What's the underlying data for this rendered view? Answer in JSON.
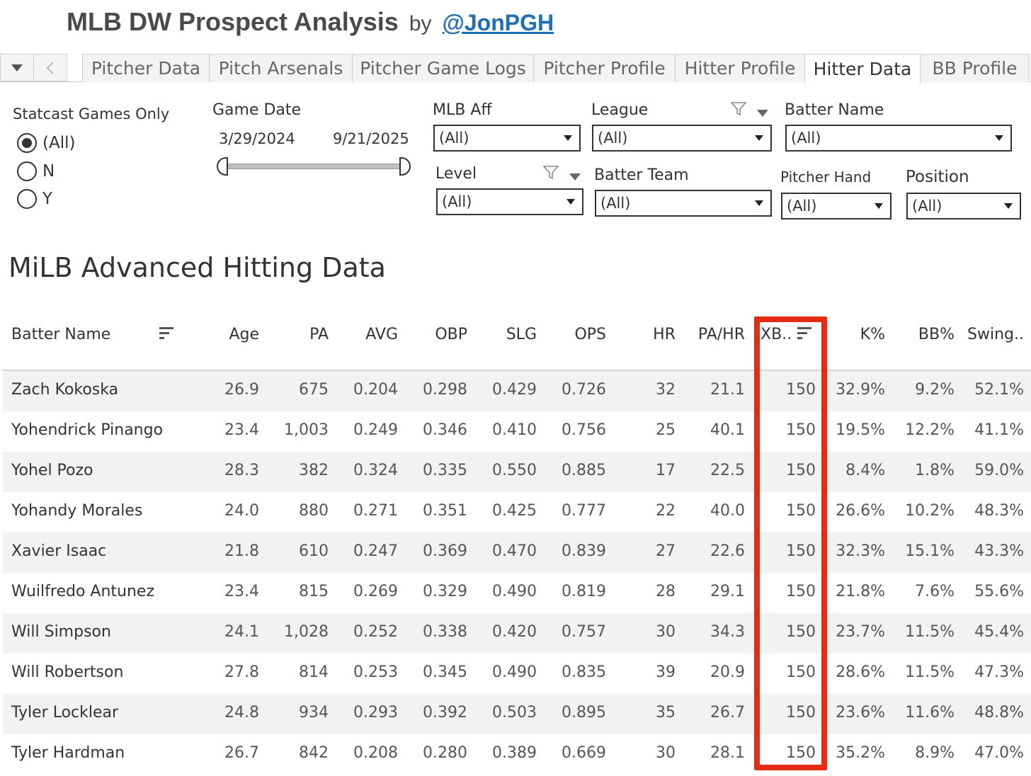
{
  "header": {
    "title": "MLB DW Prospect Analysis",
    "by": "by",
    "author": "@JonPGH"
  },
  "tabs": [
    {
      "label": "Pitcher Data",
      "active": false
    },
    {
      "label": "Pitch Arsenals",
      "active": false
    },
    {
      "label": "Pitcher Game Logs",
      "active": false
    },
    {
      "label": "Pitcher Profile",
      "active": false
    },
    {
      "label": "Hitter Profile",
      "active": false
    },
    {
      "label": "Hitter Data",
      "active": true
    },
    {
      "label": "BB Profile",
      "active": false
    }
  ],
  "filters": {
    "statcast": {
      "label": "Statcast Games Only",
      "options": [
        "(All)",
        "N",
        "Y"
      ],
      "selected": "(All)"
    },
    "game_date": {
      "label": "Game Date",
      "start": "3/29/2024",
      "end": "9/21/2025"
    },
    "mlb_aff": {
      "label": "MLB Aff",
      "value": "(All)"
    },
    "league": {
      "label": "League",
      "value": "(All)"
    },
    "batter_name": {
      "label": "Batter Name",
      "value": "(All)"
    },
    "level": {
      "label": "Level",
      "value": "(All)"
    },
    "batter_team": {
      "label": "Batter Team",
      "value": "(All)"
    },
    "pitcher_hand": {
      "label": "Pitcher Hand",
      "value": "(All)"
    },
    "position": {
      "label": "Position",
      "value": "(All)"
    }
  },
  "section_title": "MiLB Advanced Hitting Data",
  "table": {
    "columns": [
      "Batter Name",
      "Age",
      "PA",
      "AVG",
      "OBP",
      "SLG",
      "OPS",
      "HR",
      "PA/HR",
      "XB..",
      "K%",
      "BB%",
      "Swing.."
    ],
    "rows": [
      [
        "Zach Kokoska",
        "26.9",
        "675",
        "0.204",
        "0.298",
        "0.429",
        "0.726",
        "32",
        "21.1",
        "150",
        "32.9%",
        "9.2%",
        "52.1%"
      ],
      [
        "Yohendrick Pinango",
        "23.4",
        "1,003",
        "0.249",
        "0.346",
        "0.410",
        "0.756",
        "25",
        "40.1",
        "150",
        "19.5%",
        "12.2%",
        "41.1%"
      ],
      [
        "Yohel Pozo",
        "28.3",
        "382",
        "0.324",
        "0.335",
        "0.550",
        "0.885",
        "17",
        "22.5",
        "150",
        "8.4%",
        "1.8%",
        "59.0%"
      ],
      [
        "Yohandy Morales",
        "24.0",
        "880",
        "0.271",
        "0.351",
        "0.425",
        "0.777",
        "22",
        "40.0",
        "150",
        "26.6%",
        "10.2%",
        "48.3%"
      ],
      [
        "Xavier Isaac",
        "21.8",
        "610",
        "0.247",
        "0.369",
        "0.470",
        "0.839",
        "27",
        "22.6",
        "150",
        "32.3%",
        "15.1%",
        "43.3%"
      ],
      [
        "Wuilfredo Antunez",
        "23.4",
        "815",
        "0.269",
        "0.329",
        "0.490",
        "0.819",
        "28",
        "29.1",
        "150",
        "21.8%",
        "7.6%",
        "55.6%"
      ],
      [
        "Will Simpson",
        "24.1",
        "1,028",
        "0.252",
        "0.338",
        "0.420",
        "0.757",
        "30",
        "34.3",
        "150",
        "23.7%",
        "11.5%",
        "45.4%"
      ],
      [
        "Will Robertson",
        "27.8",
        "814",
        "0.253",
        "0.345",
        "0.490",
        "0.835",
        "39",
        "20.9",
        "150",
        "28.6%",
        "11.5%",
        "47.3%"
      ],
      [
        "Tyler Locklear",
        "24.8",
        "934",
        "0.293",
        "0.392",
        "0.503",
        "0.895",
        "35",
        "26.7",
        "150",
        "23.6%",
        "11.6%",
        "48.8%"
      ],
      [
        "Tyler Hardman",
        "26.7",
        "842",
        "0.208",
        "0.280",
        "0.389",
        "0.669",
        "30",
        "28.1",
        "150",
        "35.2%",
        "8.9%",
        "47.0%"
      ]
    ]
  },
  "colors": {
    "highlight_border": "#e52b14",
    "link": "#1f6fb5",
    "row_alt": "#f2f2f2"
  }
}
